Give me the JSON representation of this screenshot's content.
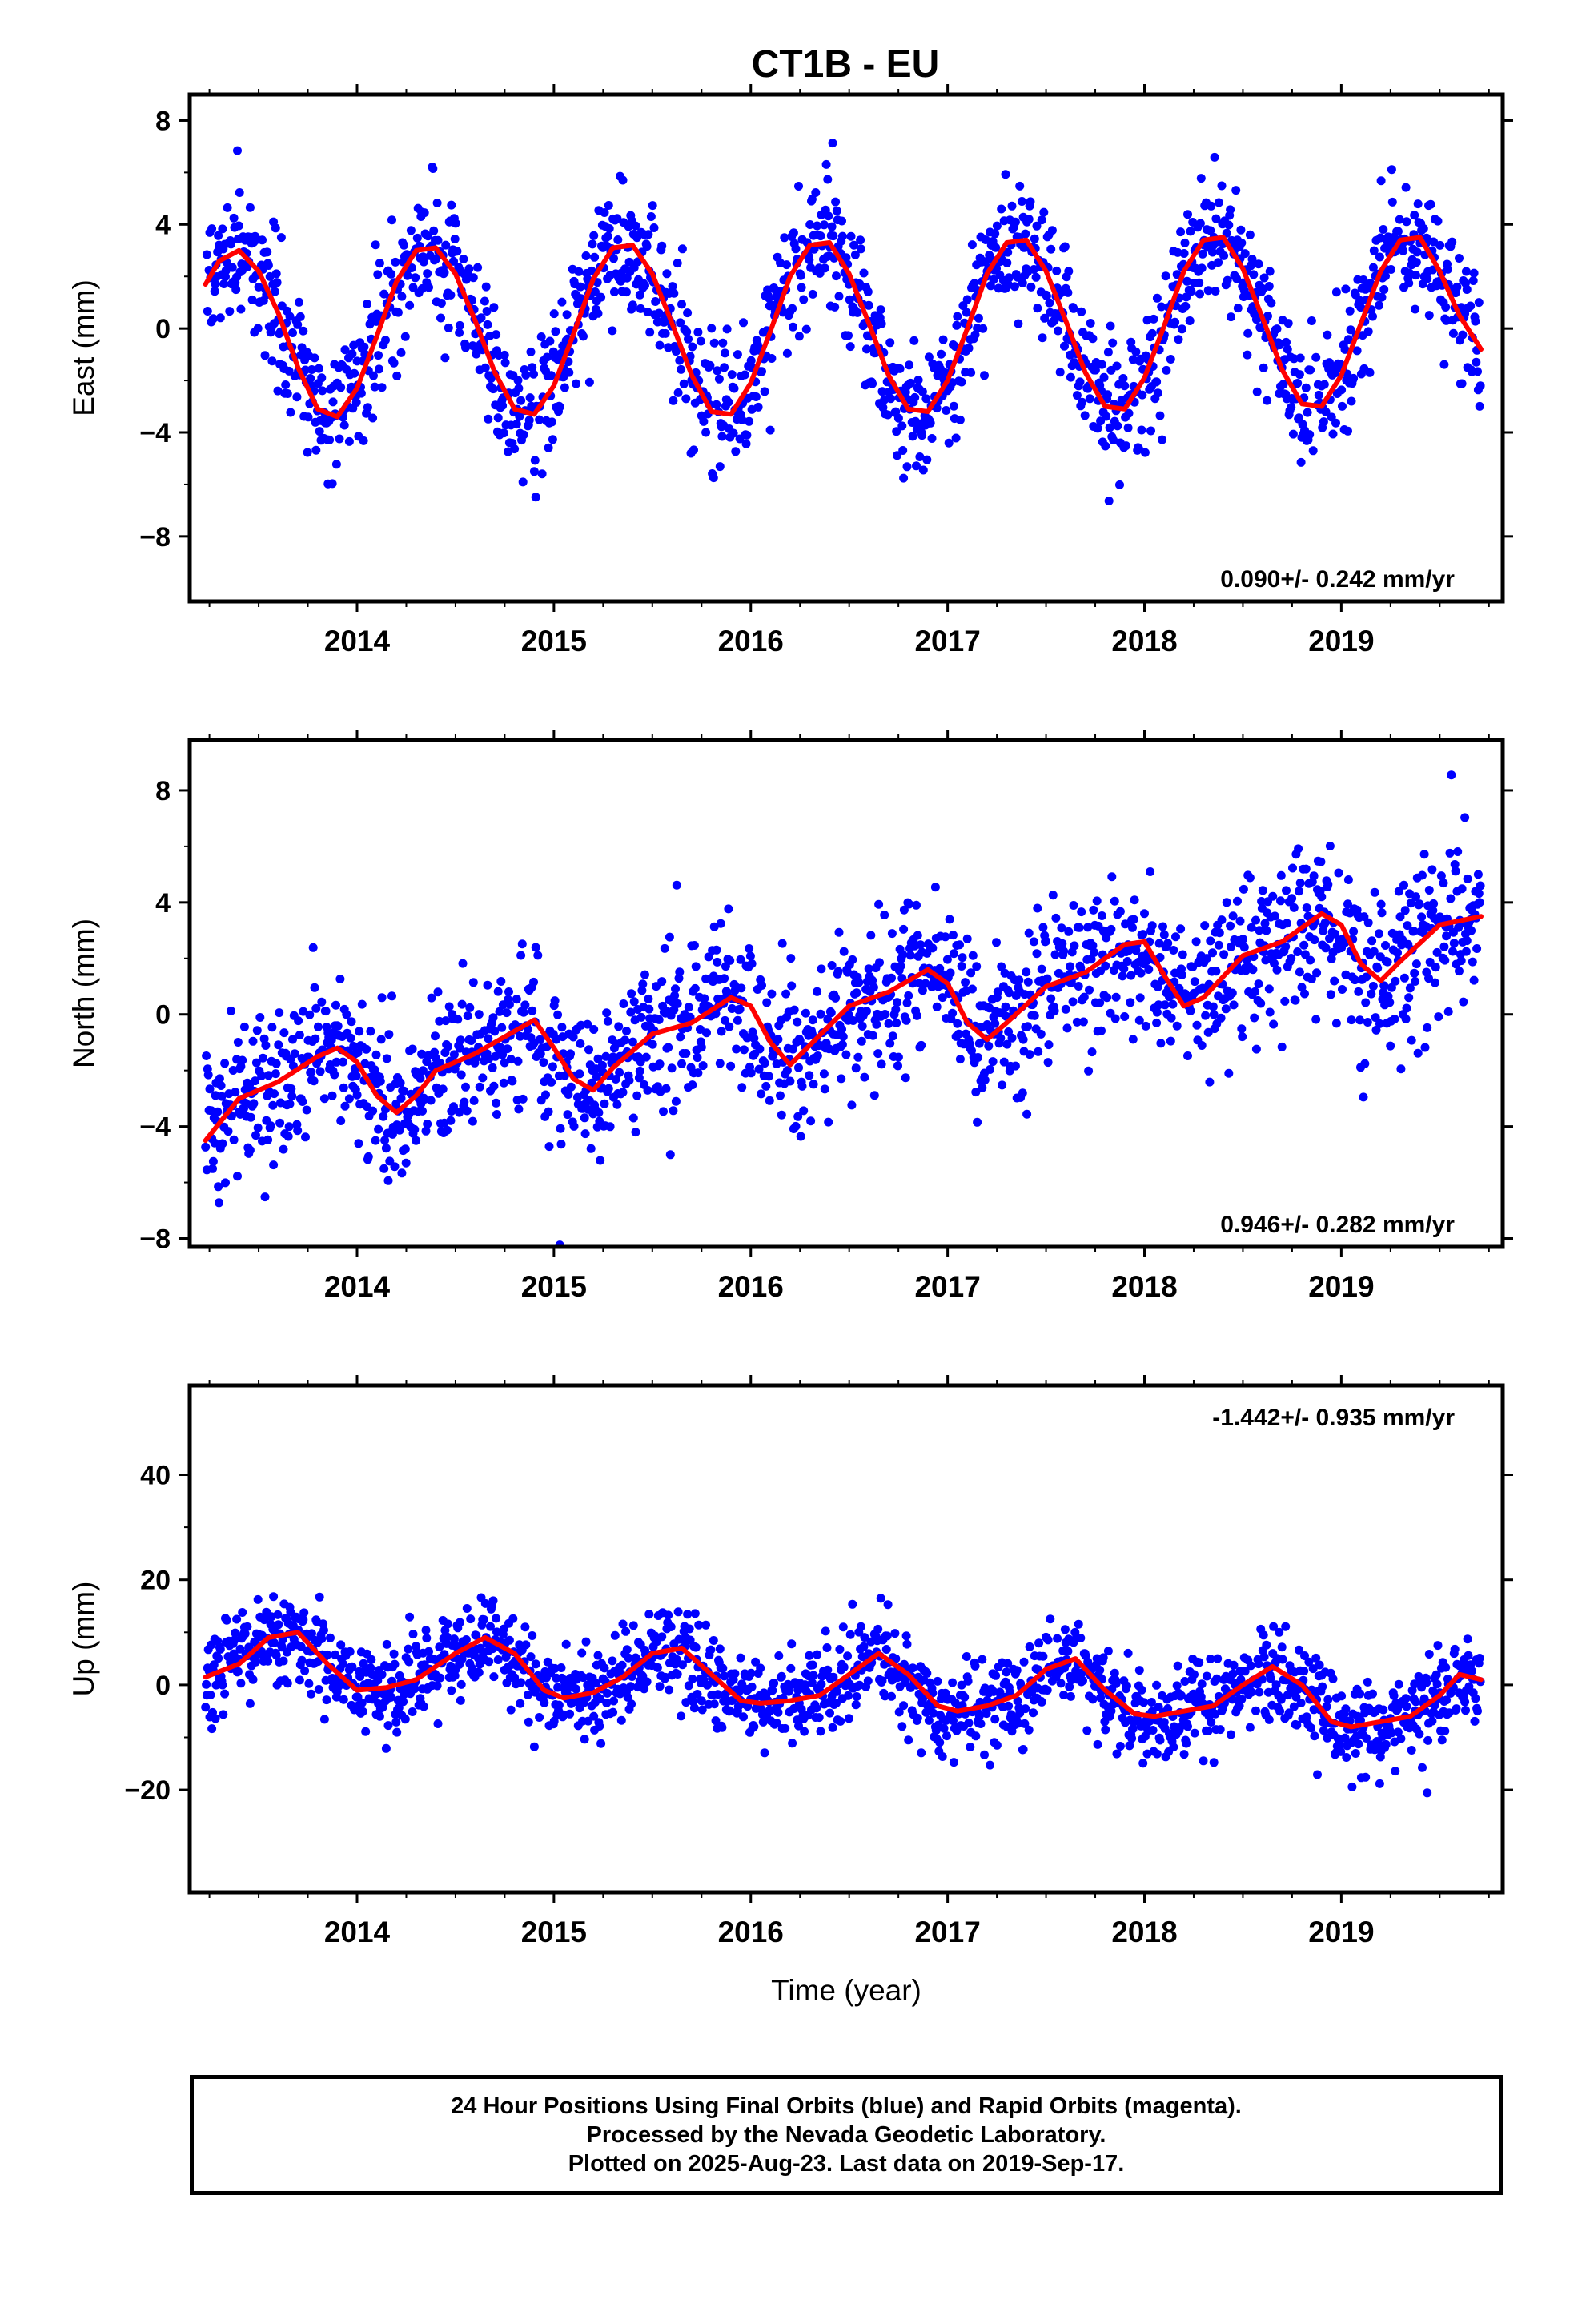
{
  "title": "CT1B - EU",
  "colors": {
    "points": "#0000ff",
    "fit": "#ff0000",
    "axes": "#000000"
  },
  "chart_data": [
    {
      "type": "scatter",
      "ylabel": "East (mm)",
      "xlabel": "",
      "xlim": [
        2013.15,
        2019.82
      ],
      "ylim": [
        -10.5,
        9.0
      ],
      "yticks": [
        -8,
        -4,
        0,
        4,
        8
      ],
      "yticklabels": [
        "−8",
        "−4",
        "0",
        "4",
        "8"
      ],
      "xticks": [
        2014,
        2015,
        2016,
        2017,
        2018,
        2019
      ],
      "xticklabels": [
        "2014",
        "2015",
        "2016",
        "2017",
        "2018",
        "2019"
      ],
      "rate_label": "0.090+/- 0.242 mm/yr",
      "rate_position": "bottom-right",
      "series": [
        {
          "role": "fit",
          "x": [
            2013.23,
            2013.3,
            2013.4,
            2013.5,
            2013.6,
            2013.7,
            2013.8,
            2013.9,
            2014.0,
            2014.1,
            2014.2,
            2014.3,
            2014.4,
            2014.5,
            2014.6,
            2014.7,
            2014.8,
            2014.9,
            2015.0,
            2015.1,
            2015.2,
            2015.3,
            2015.4,
            2015.5,
            2015.6,
            2015.7,
            2015.8,
            2015.9,
            2016.0,
            2016.1,
            2016.2,
            2016.3,
            2016.4,
            2016.5,
            2016.6,
            2016.7,
            2016.8,
            2016.9,
            2017.0,
            2017.1,
            2017.2,
            2017.3,
            2017.4,
            2017.5,
            2017.6,
            2017.7,
            2017.8,
            2017.9,
            2018.0,
            2018.1,
            2018.2,
            2018.3,
            2018.4,
            2018.5,
            2018.6,
            2018.7,
            2018.8,
            2018.9,
            2019.0,
            2019.1,
            2019.2,
            2019.3,
            2019.4,
            2019.5,
            2019.6,
            2019.71
          ],
          "y": [
            1.7,
            2.6,
            3.0,
            2.2,
            0.6,
            -1.5,
            -3.1,
            -3.4,
            -2.3,
            -0.3,
            1.8,
            3.0,
            3.1,
            2.1,
            0.3,
            -1.7,
            -3.1,
            -3.3,
            -2.2,
            -0.2,
            1.9,
            3.1,
            3.2,
            2.1,
            0.2,
            -1.8,
            -3.2,
            -3.3,
            -2.1,
            -0.1,
            2.0,
            3.2,
            3.3,
            2.1,
            0.2,
            -1.8,
            -3.1,
            -3.2,
            -2.0,
            0.0,
            2.1,
            3.3,
            3.4,
            2.2,
            0.3,
            -1.7,
            -3.0,
            -3.1,
            -1.9,
            0.1,
            2.2,
            3.4,
            3.5,
            2.3,
            0.4,
            -1.6,
            -2.9,
            -3.0,
            -1.8,
            0.2,
            2.2,
            3.4,
            3.5,
            2.2,
            0.5,
            -0.8
          ]
        }
      ]
    },
    {
      "type": "scatter",
      "ylabel": "North (mm)",
      "xlabel": "",
      "xlim": [
        2013.15,
        2019.82
      ],
      "ylim": [
        -8.3,
        9.8
      ],
      "yticks": [
        -8,
        -4,
        0,
        4,
        8
      ],
      "yticklabels": [
        "−8",
        "−4",
        "0",
        "4",
        "8"
      ],
      "xticks": [
        2014,
        2015,
        2016,
        2017,
        2018,
        2019
      ],
      "xticklabels": [
        "2014",
        "2015",
        "2016",
        "2017",
        "2018",
        "2019"
      ],
      "rate_label": "0.946+/- 0.282 mm/yr",
      "rate_position": "bottom-right",
      "series": [
        {
          "role": "fit",
          "x": [
            2013.23,
            2013.4,
            2013.6,
            2013.8,
            2013.9,
            2014.0,
            2014.1,
            2014.2,
            2014.3,
            2014.4,
            2014.6,
            2014.8,
            2014.9,
            2015.0,
            2015.1,
            2015.2,
            2015.3,
            2015.5,
            2015.7,
            2015.9,
            2016.0,
            2016.1,
            2016.2,
            2016.3,
            2016.5,
            2016.7,
            2016.9,
            2017.0,
            2017.1,
            2017.2,
            2017.3,
            2017.5,
            2017.7,
            2017.9,
            2018.0,
            2018.1,
            2018.2,
            2018.3,
            2018.5,
            2018.7,
            2018.9,
            2019.0,
            2019.1,
            2019.2,
            2019.3,
            2019.5,
            2019.71
          ],
          "y": [
            -4.5,
            -3.0,
            -2.4,
            -1.5,
            -1.2,
            -1.7,
            -2.9,
            -3.5,
            -2.9,
            -2.0,
            -1.4,
            -0.6,
            -0.2,
            -1.2,
            -2.3,
            -2.7,
            -1.9,
            -0.7,
            -0.3,
            0.6,
            0.3,
            -1.0,
            -1.8,
            -1.1,
            0.3,
            0.8,
            1.6,
            1.1,
            -0.3,
            -0.9,
            -0.3,
            1.0,
            1.5,
            2.5,
            2.6,
            1.4,
            0.3,
            0.6,
            2.1,
            2.6,
            3.6,
            3.2,
            1.8,
            1.2,
            1.9,
            3.2,
            3.5
          ]
        }
      ]
    },
    {
      "type": "scatter",
      "ylabel": "Up (mm)",
      "xlabel": "Time (year)",
      "xlim": [
        2013.15,
        2019.82
      ],
      "ylim": [
        -39.5,
        57.0
      ],
      "yticks": [
        -20,
        0,
        20,
        40
      ],
      "yticklabels": [
        "−20",
        "0",
        "20",
        "40"
      ],
      "xticks": [
        2014,
        2015,
        2016,
        2017,
        2018,
        2019
      ],
      "xticklabels": [
        "2014",
        "2015",
        "2016",
        "2017",
        "2018",
        "2019"
      ],
      "rate_label": "-1.442+/- 0.935 mm/yr",
      "rate_position": "top-right",
      "series": [
        {
          "role": "fit",
          "x": [
            2013.23,
            2013.4,
            2013.55,
            2013.7,
            2013.85,
            2014.0,
            2014.15,
            2014.3,
            2014.5,
            2014.65,
            2014.8,
            2014.95,
            2015.05,
            2015.2,
            2015.35,
            2015.5,
            2015.65,
            2015.8,
            2015.95,
            2016.05,
            2016.2,
            2016.35,
            2016.5,
            2016.65,
            2016.8,
            2016.95,
            2017.05,
            2017.2,
            2017.35,
            2017.5,
            2017.65,
            2017.8,
            2017.95,
            2018.05,
            2018.2,
            2018.35,
            2018.5,
            2018.65,
            2018.8,
            2018.95,
            2019.05,
            2019.2,
            2019.35,
            2019.5,
            2019.6,
            2019.71
          ],
          "y": [
            1.5,
            4.0,
            9.0,
            10.0,
            4.0,
            -1.0,
            -0.5,
            1.0,
            6.0,
            9.0,
            6.0,
            -1.0,
            -2.5,
            -1.5,
            1.5,
            6.0,
            7.0,
            2.0,
            -3.0,
            -3.5,
            -3.0,
            -2.0,
            2.0,
            6.0,
            2.0,
            -4.0,
            -5.0,
            -4.0,
            -2.0,
            3.0,
            5.0,
            -1.0,
            -5.5,
            -6.0,
            -5.0,
            -4.0,
            0.0,
            3.5,
            0.0,
            -7.0,
            -8.0,
            -7.0,
            -6.0,
            -2.0,
            2.0,
            1.0
          ]
        }
      ]
    }
  ],
  "footer": {
    "line1": "24 Hour Positions Using Final Orbits (blue) and Rapid Orbits (magenta).",
    "line2": "Processed by the Nevada Geodetic Laboratory.",
    "line3": "Plotted on 2025-Aug-23. Last data on 2019-Sep-17."
  }
}
